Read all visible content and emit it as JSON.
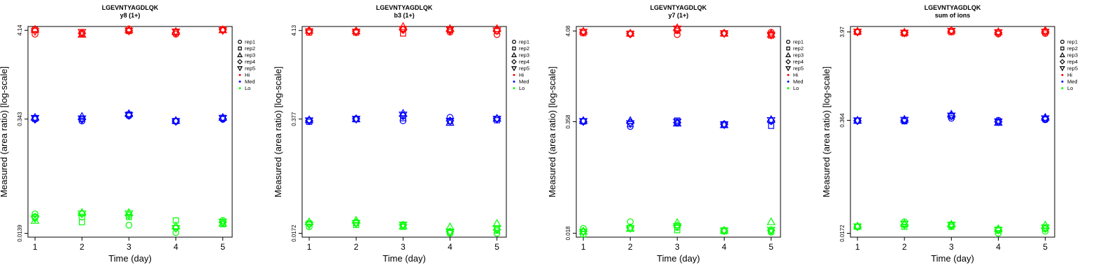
{
  "series_colors": {
    "Hi": "#ff0000",
    "Med": "#0000ff",
    "Lo": "#00ff00"
  },
  "replicate_symbols": {
    "rep1": "circle",
    "rep2": "square",
    "rep3": "triangle-up",
    "rep4": "diamond",
    "rep5": "triangle-down"
  },
  "chart_data": [
    {
      "type": "scatter",
      "title": "LGEVNTYAGDLQK",
      "subtitle": "y8 (1+)",
      "xlabel": "Time (day)",
      "ylabel": "Measured (area ratio) [log-scale]",
      "x": [
        1,
        2,
        3,
        4,
        5
      ],
      "yticks": [
        "0.0139",
        "0.343",
        "4.14"
      ],
      "ylim": [
        0.0125,
        4.6
      ],
      "legend": {
        "position": "right",
        "items": [
          "rep1",
          "rep2",
          "rep3",
          "rep4",
          "rep5",
          "Hi",
          "Med",
          "Lo"
        ]
      },
      "series": [
        {
          "name": "Hi",
          "reps": {
            "rep1": [
              3.7,
              3.85,
              4.3,
              3.7,
              4.15
            ],
            "rep2": [
              4.2,
              3.75,
              4.05,
              3.9,
              4.25
            ],
            "rep3": [
              4.25,
              3.7,
              4.2,
              4.0,
              4.2
            ],
            "rep4": [
              4.1,
              3.8,
              4.1,
              3.85,
              4.2
            ],
            "rep5": [
              4.0,
              3.9,
              4.05,
              3.95,
              4.1
            ]
          }
        },
        {
          "name": "Med",
          "reps": {
            "rep1": [
              0.345,
              0.325,
              0.375,
              0.32,
              0.34
            ],
            "rep2": [
              0.345,
              0.345,
              0.39,
              0.325,
              0.355
            ],
            "rep3": [
              0.36,
              0.37,
              0.4,
              0.33,
              0.36
            ],
            "rep4": [
              0.34,
              0.34,
              0.38,
              0.325,
              0.345
            ],
            "rep5": [
              0.35,
              0.345,
              0.38,
              0.32,
              0.35
            ]
          }
        },
        {
          "name": "Lo",
          "reps": {
            "rep1": [
              0.024,
              0.022,
              0.0175,
              0.0142,
              0.02
            ],
            "rep2": [
              0.022,
              0.019,
              0.022,
              0.02,
              0.018
            ],
            "rep3": [
              0.02,
              0.025,
              0.025,
              0.0172,
              0.0185
            ],
            "rep4": [
              0.022,
              0.024,
              0.023,
              0.016,
              0.019
            ],
            "rep5": [
              0.021,
              0.024,
              0.024,
              0.016,
              0.019
            ]
          }
        }
      ]
    },
    {
      "type": "scatter",
      "title": "LGEVNTYAGDLQK",
      "subtitle": "b3 (1+)",
      "xlabel": "Time (day)",
      "ylabel": "Measured (area ratio) [log-scale]",
      "x": [
        1,
        2,
        3,
        4,
        5
      ],
      "yticks": [
        "0.0172",
        "0.377",
        "4.13"
      ],
      "ylim": [
        0.0155,
        4.6
      ],
      "legend": {
        "position": "right",
        "items": [
          "rep1",
          "rep2",
          "rep3",
          "rep4",
          "rep5",
          "Hi",
          "Med",
          "Lo"
        ]
      },
      "series": [
        {
          "name": "Hi",
          "reps": {
            "rep1": [
              4.05,
              4.0,
              4.3,
              3.95,
              3.7
            ],
            "rep2": [
              3.9,
              3.9,
              3.8,
              4.2,
              4.05
            ],
            "rep3": [
              4.15,
              4.1,
              4.6,
              4.35,
              4.35
            ],
            "rep4": [
              4.1,
              4.05,
              4.2,
              4.1,
              4.15
            ],
            "rep5": [
              4.0,
              3.95,
              4.25,
              4.2,
              4.1
            ]
          }
        },
        {
          "name": "Med",
          "reps": {
            "rep1": [
              0.365,
              0.38,
              0.36,
              0.395,
              0.38
            ],
            "rep2": [
              0.35,
              0.375,
              0.385,
              0.355,
              0.365
            ],
            "rep3": [
              0.37,
              0.38,
              0.44,
              0.345,
              0.385
            ],
            "rep4": [
              0.36,
              0.38,
              0.41,
              0.36,
              0.38
            ],
            "rep5": [
              0.36,
              0.375,
              0.42,
              0.355,
              0.375
            ]
          }
        },
        {
          "name": "Lo",
          "reps": {
            "rep1": [
              0.0205,
              0.0225,
              0.0215,
              0.0172,
              0.0172
            ],
            "rep2": [
              0.0225,
              0.0215,
              0.0205,
              0.0175,
              0.0185
            ],
            "rep3": [
              0.0235,
              0.0245,
              0.021,
              0.0205,
              0.0225
            ],
            "rep4": [
              0.022,
              0.023,
              0.0215,
              0.018,
              0.019
            ],
            "rep5": [
              0.0215,
              0.0225,
              0.0215,
              0.0178,
              0.0195
            ]
          }
        }
      ]
    },
    {
      "type": "scatter",
      "title": "LGEVNTYAGDLQK",
      "subtitle": "y7 (1+)",
      "xlabel": "Time (day)",
      "ylabel": "Measured (area ratio) [log-scale]",
      "x": [
        1,
        2,
        3,
        4,
        5
      ],
      "yticks": [
        "0.018",
        "0.358",
        "4.08"
      ],
      "ylim": [
        0.0162,
        4.6
      ],
      "legend": {
        "position": "right",
        "items": [
          "rep1",
          "rep2",
          "rep3",
          "rep4",
          "rep5",
          "Hi",
          "Med",
          "Lo"
        ]
      },
      "series": [
        {
          "name": "Hi",
          "reps": {
            "rep1": [
              4.0,
              3.75,
              3.7,
              3.85,
              3.95
            ],
            "rep2": [
              3.85,
              3.8,
              4.1,
              3.8,
              3.6
            ],
            "rep3": [
              4.05,
              3.85,
              4.45,
              3.85,
              3.75
            ],
            "rep4": [
              3.95,
              3.8,
              4.2,
              3.85,
              3.8
            ],
            "rep5": [
              3.95,
              3.75,
              4.3,
              3.8,
              3.65
            ]
          }
        },
        {
          "name": "Med",
          "reps": {
            "rep1": [
              0.36,
              0.315,
              0.345,
              0.33,
              0.365
            ],
            "rep2": [
              0.36,
              0.335,
              0.37,
              0.335,
              0.32
            ],
            "rep3": [
              0.37,
              0.37,
              0.345,
              0.33,
              0.38
            ],
            "rep4": [
              0.36,
              0.35,
              0.35,
              0.335,
              0.365
            ],
            "rep5": [
              0.36,
              0.34,
              0.355,
              0.33,
              0.37
            ]
          }
        },
        {
          "name": "Lo",
          "reps": {
            "rep1": [
              0.0205,
              0.0245,
              0.021,
              0.0195,
              0.0185
            ],
            "rep2": [
              0.0175,
              0.0205,
              0.0195,
              0.019,
              0.019
            ],
            "rep3": [
              0.019,
              0.0205,
              0.024,
              0.0195,
              0.0245
            ],
            "rep4": [
              0.019,
              0.021,
              0.022,
              0.0192,
              0.0195
            ],
            "rep5": [
              0.0185,
              0.0205,
              0.0215,
              0.0192,
              0.0195
            ]
          }
        }
      ]
    },
    {
      "type": "scatter",
      "title": "LGEVNTYAGDLQK",
      "subtitle": "sum of ions",
      "xlabel": "Time (day)",
      "ylabel": "Measured (area ratio) [log-scale]",
      "x": [
        1,
        2,
        3,
        4,
        5
      ],
      "yticks": [
        "0.0172",
        "0.364",
        "3.97"
      ],
      "ylim": [
        0.0155,
        4.6
      ],
      "legend": {
        "position": "right",
        "items": [
          "rep1",
          "rep2",
          "rep3",
          "rep4",
          "rep5",
          "Hi",
          "Med",
          "Lo"
        ]
      },
      "series": [
        {
          "name": "Hi",
          "reps": {
            "rep1": [
              4.0,
              3.85,
              4.1,
              3.75,
              3.8
            ],
            "rep2": [
              3.95,
              3.8,
              3.95,
              3.9,
              3.95
            ],
            "rep3": [
              4.05,
              3.95,
              4.15,
              4.0,
              4.15
            ],
            "rep4": [
              4.0,
              3.9,
              4.05,
              3.9,
              4.0
            ],
            "rep5": [
              3.95,
              3.85,
              4.05,
              3.9,
              3.95
            ]
          }
        },
        {
          "name": "Med",
          "reps": {
            "rep1": [
              0.36,
              0.36,
              0.385,
              0.365,
              0.37
            ],
            "rep2": [
              0.36,
              0.355,
              0.405,
              0.345,
              0.375
            ],
            "rep3": [
              0.365,
              0.375,
              0.43,
              0.345,
              0.395
            ],
            "rep4": [
              0.36,
              0.365,
              0.41,
              0.35,
              0.38
            ],
            "rep5": [
              0.36,
              0.365,
              0.41,
              0.35,
              0.38
            ]
          }
        },
        {
          "name": "Lo",
          "reps": {
            "rep1": [
              0.0205,
              0.0235,
              0.0215,
              0.0172,
              0.0182
            ],
            "rep2": [
              0.0205,
              0.0205,
              0.0205,
              0.0185,
              0.0195
            ],
            "rep3": [
              0.021,
              0.0225,
              0.022,
              0.0195,
              0.0215
            ],
            "rep4": [
              0.0205,
              0.0215,
              0.021,
              0.0188,
              0.0195
            ],
            "rep5": [
              0.0205,
              0.022,
              0.0215,
              0.0188,
              0.02
            ]
          }
        }
      ]
    }
  ]
}
